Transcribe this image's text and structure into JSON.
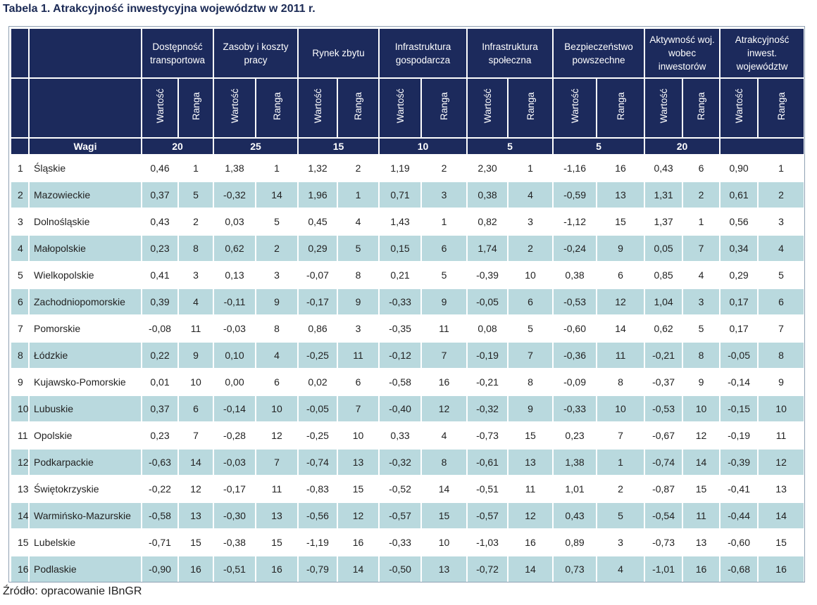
{
  "title": "Tabela 1. Atrakcyjność inwestycyjna województw w 2011 r.",
  "source": "Źródło: opracowanie IBnGR",
  "weights_label": "Wagi",
  "col_value": "Wartość",
  "col_rank": "Ranga",
  "groups": [
    {
      "label": "Dostępność transportowa",
      "weight": "20"
    },
    {
      "label": "Zasoby i koszty pracy",
      "weight": "25"
    },
    {
      "label": "Rynek zbytu",
      "weight": "15"
    },
    {
      "label": "Infrastruktura gospodarcza",
      "weight": "10"
    },
    {
      "label": "Infrastruktura społeczna",
      "weight": "5"
    },
    {
      "label": "Bezpieczeństwo powszechne",
      "weight": "5"
    },
    {
      "label": "Aktywność woj. wobec inwestorów",
      "weight": "20"
    },
    {
      "label": "Atrakcyjność inwest. województw",
      "weight": ""
    }
  ],
  "rows": [
    {
      "num": "1",
      "name": "Śląskie",
      "cells": [
        "0,46",
        "1",
        "1,38",
        "1",
        "1,32",
        "2",
        "1,19",
        "2",
        "2,30",
        "1",
        "-1,16",
        "16",
        "0,43",
        "6",
        "0,90",
        "1"
      ]
    },
    {
      "num": "2",
      "name": "Mazowieckie",
      "cells": [
        "0,37",
        "5",
        "-0,32",
        "14",
        "1,96",
        "1",
        "0,71",
        "3",
        "0,38",
        "4",
        "-0,59",
        "13",
        "1,31",
        "2",
        "0,61",
        "2"
      ]
    },
    {
      "num": "3",
      "name": "Dolnośląskie",
      "cells": [
        "0,43",
        "2",
        "0,03",
        "5",
        "0,45",
        "4",
        "1,43",
        "1",
        "0,82",
        "3",
        "-1,12",
        "15",
        "1,37",
        "1",
        "0,56",
        "3"
      ]
    },
    {
      "num": "4",
      "name": "Małopolskie",
      "cells": [
        "0,23",
        "8",
        "0,62",
        "2",
        "0,29",
        "5",
        "0,15",
        "6",
        "1,74",
        "2",
        "-0,24",
        "9",
        "0,05",
        "7",
        "0,34",
        "4"
      ]
    },
    {
      "num": "5",
      "name": "Wielkopolskie",
      "cells": [
        "0,41",
        "3",
        "0,13",
        "3",
        "-0,07",
        "8",
        "0,21",
        "5",
        "-0,39",
        "10",
        "0,38",
        "6",
        "0,85",
        "4",
        "0,29",
        "5"
      ]
    },
    {
      "num": "6",
      "name": "Zachodniopomorskie",
      "cells": [
        "0,39",
        "4",
        "-0,11",
        "9",
        "-0,17",
        "9",
        "-0,33",
        "9",
        "-0,05",
        "6",
        "-0,53",
        "12",
        "1,04",
        "3",
        "0,17",
        "6"
      ]
    },
    {
      "num": "7",
      "name": "Pomorskie",
      "cells": [
        "-0,08",
        "11",
        "-0,03",
        "8",
        "0,86",
        "3",
        "-0,35",
        "11",
        "0,08",
        "5",
        "-0,60",
        "14",
        "0,62",
        "5",
        "0,17",
        "7"
      ]
    },
    {
      "num": "8",
      "name": "Łódzkie",
      "cells": [
        "0,22",
        "9",
        "0,10",
        "4",
        "-0,25",
        "11",
        "-0,12",
        "7",
        "-0,19",
        "7",
        "-0,36",
        "11",
        "-0,21",
        "8",
        "-0,05",
        "8"
      ]
    },
    {
      "num": "9",
      "name": "Kujawsko-Pomorskie",
      "cells": [
        "0,01",
        "10",
        "0,00",
        "6",
        "0,02",
        "6",
        "-0,58",
        "16",
        "-0,21",
        "8",
        "-0,09",
        "8",
        "-0,37",
        "9",
        "-0,14",
        "9"
      ]
    },
    {
      "num": "10",
      "name": "Lubuskie",
      "cells": [
        "0,37",
        "6",
        "-0,14",
        "10",
        "-0,05",
        "7",
        "-0,40",
        "12",
        "-0,32",
        "9",
        "-0,33",
        "10",
        "-0,53",
        "10",
        "-0,15",
        "10"
      ]
    },
    {
      "num": "11",
      "name": "Opolskie",
      "cells": [
        "0,23",
        "7",
        "-0,28",
        "12",
        "-0,25",
        "10",
        "0,33",
        "4",
        "-0,73",
        "15",
        "0,23",
        "7",
        "-0,67",
        "12",
        "-0,19",
        "11"
      ]
    },
    {
      "num": "12",
      "name": "Podkarpackie",
      "cells": [
        "-0,63",
        "14",
        "-0,03",
        "7",
        "-0,74",
        "13",
        "-0,32",
        "8",
        "-0,61",
        "13",
        "1,38",
        "1",
        "-0,74",
        "14",
        "-0,39",
        "12"
      ]
    },
    {
      "num": "13",
      "name": "Świętokrzyskie",
      "cells": [
        "-0,22",
        "12",
        "-0,17",
        "11",
        "-0,83",
        "15",
        "-0,52",
        "14",
        "-0,51",
        "11",
        "1,01",
        "2",
        "-0,87",
        "15",
        "-0,41",
        "13"
      ]
    },
    {
      "num": "14",
      "name": "Warmińsko-Mazurskie",
      "cells": [
        "-0,58",
        "13",
        "-0,30",
        "13",
        "-0,56",
        "12",
        "-0,57",
        "15",
        "-0,57",
        "12",
        "0,43",
        "5",
        "-0,54",
        "11",
        "-0,44",
        "14"
      ]
    },
    {
      "num": "15",
      "name": "Lubelskie",
      "cells": [
        "-0,71",
        "15",
        "-0,38",
        "15",
        "-1,19",
        "16",
        "-0,33",
        "10",
        "-1,03",
        "16",
        "0,89",
        "3",
        "-0,73",
        "13",
        "-0,60",
        "15"
      ]
    },
    {
      "num": "16",
      "name": "Podlaskie",
      "cells": [
        "-0,90",
        "16",
        "-0,51",
        "16",
        "-0,79",
        "14",
        "-0,50",
        "13",
        "-0,72",
        "14",
        "0,73",
        "4",
        "-1,01",
        "16",
        "-0,68",
        "16"
      ]
    }
  ]
}
